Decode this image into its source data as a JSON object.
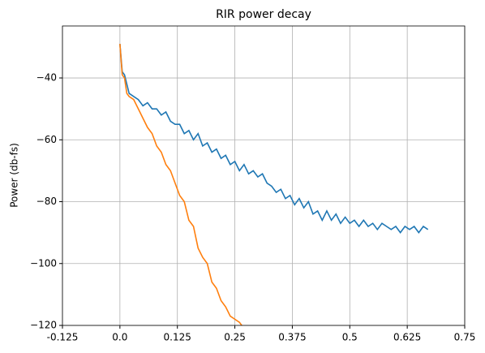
{
  "chart_data": {
    "type": "line",
    "title": "RIR power decay",
    "y_label": "Power (db-fs)",
    "xlim": [
      -0.125,
      0.75
    ],
    "xticks": [
      -0.125,
      {
        "value": 0,
        "label": "0.0"
      },
      0.125,
      0.25,
      0.375,
      0.5,
      0.625,
      0.75
    ],
    "ylim": [
      -120,
      -23.2
    ],
    "yticks": [
      {
        "value": -120,
        "label": "−120"
      },
      {
        "value": -100,
        "label": "−100"
      },
      {
        "value": -80,
        "label": "−80"
      },
      {
        "value": -60,
        "label": "−60"
      },
      {
        "value": -40,
        "label": "−40"
      }
    ],
    "grid": true,
    "series": [
      {
        "color": "#1f77b4",
        "x": [
          0,
          0.005,
          0.01,
          0.02,
          0.03,
          0.04,
          0.05,
          0.06,
          0.07,
          0.08,
          0.09,
          0.1,
          0.11,
          0.12,
          0.13,
          0.14,
          0.15,
          0.16,
          0.17,
          0.18,
          0.19,
          0.2,
          0.21,
          0.22,
          0.23,
          0.24,
          0.25,
          0.26,
          0.27,
          0.28,
          0.29,
          0.3,
          0.31,
          0.32,
          0.33,
          0.34,
          0.35,
          0.36,
          0.37,
          0.38,
          0.39,
          0.4,
          0.41,
          0.42,
          0.43,
          0.44,
          0.45,
          0.46,
          0.47,
          0.48,
          0.49,
          0.5,
          0.51,
          0.52,
          0.53,
          0.54,
          0.55,
          0.56,
          0.57,
          0.58,
          0.59,
          0.6,
          0.61,
          0.62,
          0.63,
          0.64,
          0.65,
          0.66,
          0.67
        ],
        "values": [
          -29,
          -38,
          -39,
          -45,
          -46,
          -47,
          -49,
          -48,
          -50,
          -50,
          -52,
          -51,
          -54,
          -55,
          -55,
          -58,
          -57,
          -60,
          -58,
          -62,
          -61,
          -64,
          -63,
          -66,
          -65,
          -68,
          -67,
          -70,
          -68,
          -71,
          -70,
          -72,
          -71,
          -74,
          -75,
          -77,
          -76,
          -79,
          -78,
          -81,
          -79,
          -82,
          -80,
          -84,
          -83,
          -86,
          -83,
          -86,
          -84,
          -87,
          -85,
          -87,
          -86,
          -88,
          -86,
          -88,
          -87,
          -89,
          -87,
          -88,
          -89,
          -88,
          -90,
          -88,
          -89,
          -88,
          -90,
          -88,
          -89
        ]
      },
      {
        "color": "#ff7f0e",
        "x": [
          0,
          0.005,
          0.01,
          0.015,
          0.02,
          0.03,
          0.04,
          0.05,
          0.06,
          0.07,
          0.08,
          0.09,
          0.1,
          0.11,
          0.12,
          0.13,
          0.14,
          0.15,
          0.16,
          0.17,
          0.18,
          0.19,
          0.2,
          0.21,
          0.22,
          0.23,
          0.24,
          0.25,
          0.26,
          0.27,
          0.28
        ],
        "values": [
          -29,
          -39,
          -40,
          -45,
          -46,
          -47,
          -50,
          -53,
          -56,
          -58,
          -62,
          -64,
          -68,
          -70,
          -74,
          -78,
          -80,
          -86,
          -88,
          -95,
          -98,
          -100,
          -106,
          -108,
          -112,
          -114,
          -117,
          -118,
          -119,
          -121,
          -124
        ]
      }
    ]
  }
}
